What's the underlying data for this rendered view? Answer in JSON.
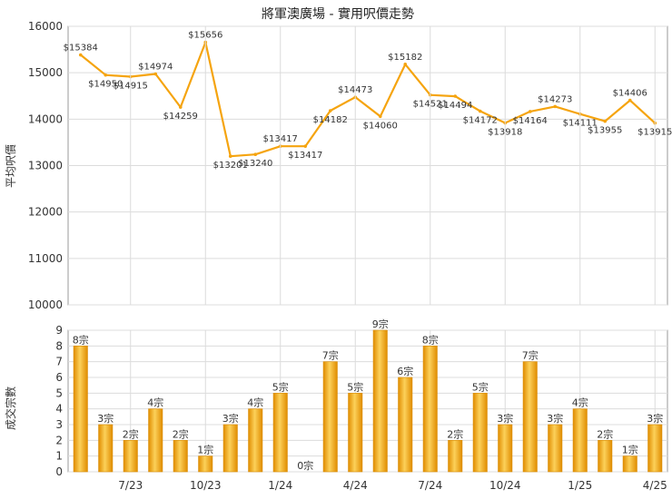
{
  "chart_data": [
    {
      "type": "line",
      "title": "將軍澳廣場 - 實用呎價走勢",
      "ylabel": "平均呎價",
      "ylim": [
        10000,
        16000
      ],
      "yticks": [
        "10000",
        "11000",
        "12000",
        "13000",
        "14000",
        "15000",
        "16000"
      ],
      "grid": true,
      "line_color": "#f5a40f",
      "series": [
        {
          "values": [
            15384,
            14950,
            14915,
            14974,
            14259,
            15656,
            13201,
            13240,
            13417,
            13417,
            14182,
            14473,
            14060,
            15182,
            14521,
            14494,
            14172,
            13918,
            14164,
            14273,
            14111,
            13955,
            14406,
            13915
          ],
          "labels": [
            "$15384",
            "$14950",
            "$14915",
            "$14974",
            "$14259",
            "$15656",
            "$13201",
            "$13240",
            "$13417",
            "$13417",
            "$14182",
            "$14473",
            "$14060",
            "$15182",
            "$14521",
            "$14494",
            "$14172",
            "$13918",
            "$14164",
            "$14273",
            "$14111",
            "$13955",
            "$14406",
            "$13915"
          ]
        }
      ]
    },
    {
      "type": "bar",
      "ylabel": "成交宗數",
      "ylim": [
        0,
        9
      ],
      "yticks": [
        "0",
        "1",
        "2",
        "3",
        "4",
        "5",
        "6",
        "7",
        "8",
        "9"
      ],
      "grid": true,
      "bar_color": "#f5a40f",
      "xticklabels": [
        "7/23",
        "10/23",
        "1/24",
        "4/24",
        "7/24",
        "10/24",
        "1/25",
        "4/25"
      ],
      "series": [
        {
          "values": [
            8,
            3,
            2,
            4,
            2,
            1,
            3,
            4,
            5,
            0,
            7,
            5,
            9,
            6,
            8,
            2,
            5,
            3,
            7,
            3,
            4,
            2,
            1,
            3
          ],
          "labels": [
            "8宗",
            "3宗",
            "2宗",
            "4宗",
            "2宗",
            "1宗",
            "3宗",
            "4宗",
            "5宗",
            "0宗",
            "7宗",
            "5宗",
            "9宗",
            "6宗",
            "8宗",
            "2宗",
            "5宗",
            "3宗",
            "7宗",
            "3宗",
            "4宗",
            "2宗",
            "1宗",
            "3宗"
          ]
        }
      ]
    }
  ]
}
